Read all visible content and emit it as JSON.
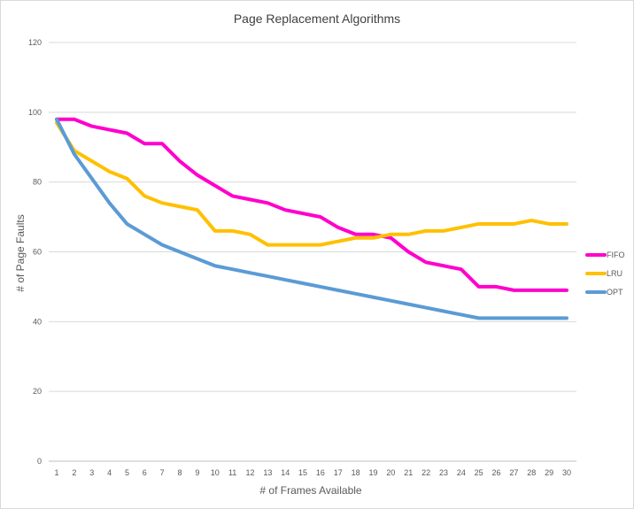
{
  "chart_data": {
    "type": "line",
    "title": "Page Replacement Algorithms",
    "xlabel": "# of Frames Available",
    "ylabel": "# of Page Faults",
    "ylim": [
      0,
      120
    ],
    "yticks": [
      0,
      20,
      40,
      60,
      80,
      100,
      120
    ],
    "x": [
      1,
      2,
      3,
      4,
      5,
      6,
      7,
      8,
      9,
      10,
      11,
      12,
      13,
      14,
      15,
      16,
      17,
      18,
      19,
      20,
      21,
      22,
      23,
      24,
      25,
      26,
      27,
      28,
      29,
      30
    ],
    "grid": "horizontal",
    "legend_position": "right",
    "series": [
      {
        "name": "FIFO",
        "color": "#ff00cc",
        "values": [
          98,
          98,
          96,
          95,
          94,
          91,
          91,
          86,
          82,
          79,
          76,
          75,
          74,
          72,
          71,
          70,
          67,
          65,
          65,
          64,
          60,
          57,
          56,
          55,
          50,
          50,
          49,
          49,
          49,
          49
        ]
      },
      {
        "name": "LRU",
        "color": "#ffc000",
        "values": [
          97,
          89,
          86,
          83,
          81,
          76,
          74,
          73,
          72,
          66,
          66,
          65,
          62,
          62,
          62,
          62,
          63,
          64,
          64,
          65,
          65,
          66,
          66,
          67,
          68,
          68,
          68,
          69,
          68,
          68
        ]
      },
      {
        "name": "OPT",
        "color": "#5b9bd5",
        "values": [
          98,
          88,
          81,
          74,
          68,
          65,
          62,
          60,
          58,
          56,
          55,
          54,
          53,
          52,
          51,
          50,
          49,
          48,
          47,
          46,
          45,
          44,
          43,
          42,
          41,
          41,
          41,
          41,
          41,
          41
        ]
      }
    ]
  }
}
